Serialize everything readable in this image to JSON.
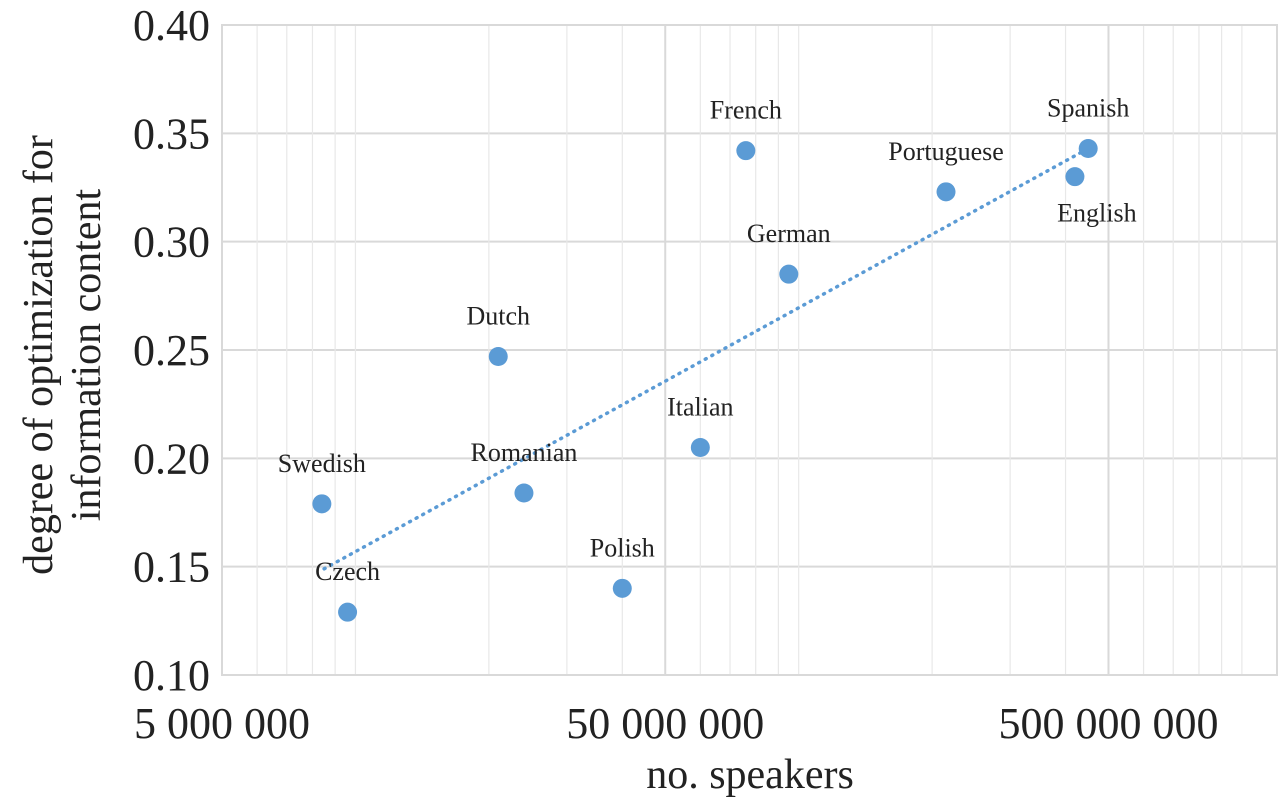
{
  "chart_data": {
    "type": "scatter",
    "xscale": "log",
    "xlim": [
      5000000,
      1200000000
    ],
    "ylim": [
      0.1,
      0.4
    ],
    "xlabel": "no. speakers",
    "ylabel": [
      "degree of optimization for",
      "information content"
    ],
    "x_ticks": [
      5000000,
      50000000,
      500000000
    ],
    "x_tick_labels": [
      "5 000 000",
      "50 000 000",
      "500 000 000"
    ],
    "y_ticks": [
      0.1,
      0.15,
      0.2,
      0.25,
      0.3,
      0.35,
      0.4
    ],
    "y_tick_labels": [
      "0.10",
      "0.15",
      "0.20",
      "0.25",
      "0.30",
      "0.35",
      "0.40"
    ],
    "grid": true,
    "marker_color": "#5b9bd5",
    "trendline": {
      "style": "dotted",
      "color": "#5b9bd5",
      "x": [
        8500000,
        450000000
      ],
      "y": [
        0.149,
        0.343
      ]
    },
    "points": [
      {
        "label": "Swedish",
        "x": 8400000,
        "y": 0.179,
        "label_pos": "above"
      },
      {
        "label": "Czech",
        "x": 9600000,
        "y": 0.129,
        "label_pos": "above"
      },
      {
        "label": "Dutch",
        "x": 21000000,
        "y": 0.247,
        "label_pos": "above"
      },
      {
        "label": "Romanian",
        "x": 24000000,
        "y": 0.184,
        "label_pos": "above"
      },
      {
        "label": "Polish",
        "x": 40000000,
        "y": 0.14,
        "label_pos": "above"
      },
      {
        "label": "Italian",
        "x": 60000000,
        "y": 0.205,
        "label_pos": "above"
      },
      {
        "label": "French",
        "x": 76000000,
        "y": 0.342,
        "label_pos": "above"
      },
      {
        "label": "German",
        "x": 95000000,
        "y": 0.285,
        "label_pos": "above"
      },
      {
        "label": "Portuguese",
        "x": 215000000,
        "y": 0.323,
        "label_pos": "above"
      },
      {
        "label": "English",
        "x": 420000000,
        "y": 0.33,
        "label_pos": "below"
      },
      {
        "label": "Spanish",
        "x": 450000000,
        "y": 0.343,
        "label_pos": "above"
      }
    ]
  }
}
